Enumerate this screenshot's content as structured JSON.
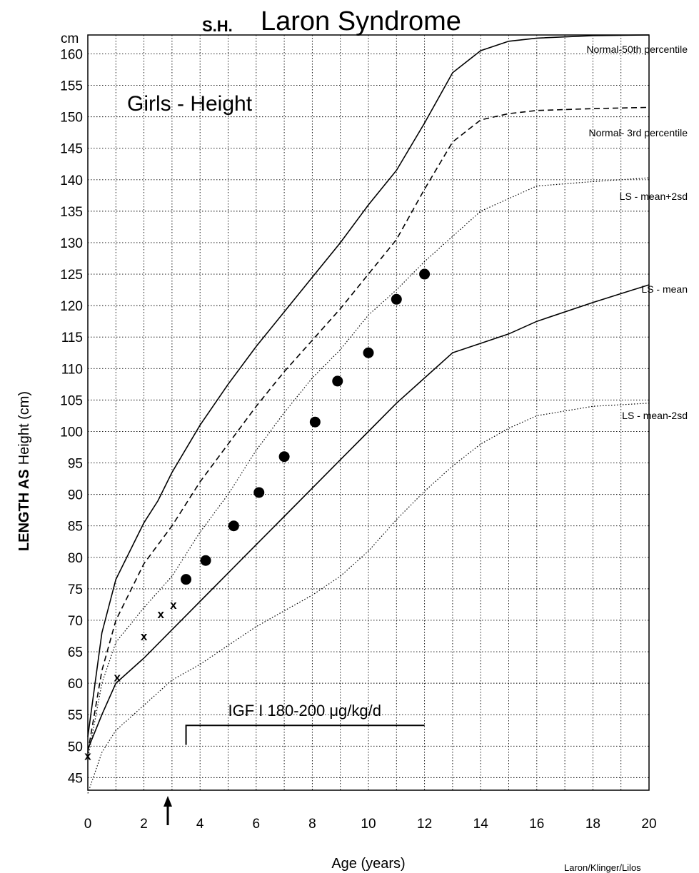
{
  "chart_data": {
    "type": "line",
    "title_prefix": "S.H.",
    "title": "Laron Syndrome",
    "subtitle": "Girls - Height",
    "xlabel": "Age (years)",
    "ylabel_bold": "LENGTH AS",
    "ylabel_rest": "Height (cm)",
    "y_unit": "cm",
    "credit": "Laron/Klinger/Lilos",
    "xlim": [
      0,
      20
    ],
    "ylim": [
      43,
      163
    ],
    "grid": true,
    "x_ticks": [
      0,
      2,
      4,
      6,
      8,
      10,
      12,
      14,
      16,
      18,
      20
    ],
    "y_ticks": [
      45,
      50,
      55,
      60,
      65,
      70,
      75,
      80,
      85,
      90,
      95,
      100,
      105,
      110,
      115,
      120,
      125,
      130,
      135,
      140,
      145,
      150,
      155,
      160
    ],
    "series": [
      {
        "name": "Normal-50th percentile",
        "style": "solid",
        "x": [
          0,
          0.5,
          1,
          2,
          2.5,
          3,
          4,
          5,
          6,
          7,
          8,
          9,
          10,
          11,
          12,
          13,
          14,
          15,
          16,
          18,
          20
        ],
        "y": [
          51.5,
          68,
          76.5,
          85.5,
          89,
          93.5,
          101,
          107.5,
          113.5,
          119,
          124.5,
          130,
          136,
          141.5,
          149,
          157,
          160.5,
          162,
          162.5,
          162.9,
          163
        ]
      },
      {
        "name": "Normal- 3rd percentile",
        "style": "dashed",
        "x": [
          0,
          0.5,
          1,
          2,
          3,
          4,
          5,
          6,
          7,
          8,
          9,
          10,
          11,
          12,
          13,
          14,
          15,
          16,
          18,
          20
        ],
        "y": [
          49,
          62,
          70,
          79,
          85,
          92,
          98,
          104,
          109.5,
          114.5,
          119.5,
          125,
          130.5,
          138.5,
          146,
          149.5,
          150.5,
          151,
          151.3,
          151.5
        ]
      },
      {
        "name": "LS - mean+2sd",
        "style": "dotted",
        "x": [
          0,
          0.5,
          1,
          2,
          3,
          4,
          5,
          6,
          7,
          8,
          9,
          10,
          11,
          12,
          13,
          14,
          15,
          16,
          18,
          20
        ],
        "y": [
          48,
          60,
          66.5,
          72,
          77,
          84,
          90,
          97,
          103,
          108.5,
          113,
          118.5,
          122.5,
          127,
          131,
          135,
          137,
          139,
          139.7,
          140.3
        ]
      },
      {
        "name": "LS - mean",
        "style": "solid",
        "x": [
          0,
          0.5,
          1,
          2,
          3,
          4,
          5,
          6,
          7,
          8,
          9,
          10,
          11,
          12,
          13,
          14,
          15,
          16,
          18,
          20
        ],
        "y": [
          49.5,
          55,
          60,
          64,
          68.5,
          73,
          77.5,
          82,
          86.5,
          91,
          95.5,
          100,
          104.5,
          108.5,
          112.5,
          114,
          115.5,
          117.5,
          120.5,
          123.3
        ]
      },
      {
        "name": "LS - mean-2sd",
        "style": "dotted",
        "x": [
          0,
          0.5,
          1,
          2,
          3,
          4,
          5,
          6,
          7,
          8,
          9,
          10,
          11,
          12,
          13,
          14,
          15,
          16,
          18,
          20
        ],
        "y": [
          42.5,
          49,
          52.5,
          56.5,
          60.5,
          63,
          66,
          69,
          71.5,
          74,
          77,
          81,
          86,
          90.5,
          94.5,
          98,
          100.5,
          102.5,
          104,
          104.5
        ]
      }
    ],
    "patient_pre_treatment": {
      "marker": "x",
      "x": [
        0,
        1.05,
        2.0,
        2.6,
        3.05
      ],
      "y": [
        48.5,
        61,
        67.5,
        71,
        72.5
      ]
    },
    "patient_treatment": {
      "marker": "filled-circle",
      "x": [
        3.5,
        4.2,
        5.2,
        6.1,
        7.0,
        8.1,
        8.9,
        10.0,
        11.0,
        12.0
      ],
      "y": [
        76.5,
        79.5,
        85,
        90.3,
        96,
        101.5,
        108,
        112.5,
        121,
        125
      ]
    },
    "treatment_annotation": {
      "text": "IGF I 180-200 μg/kg/d",
      "x_start": 3.5,
      "x_end": 12
    },
    "arrow_marker_x": 2.85
  }
}
